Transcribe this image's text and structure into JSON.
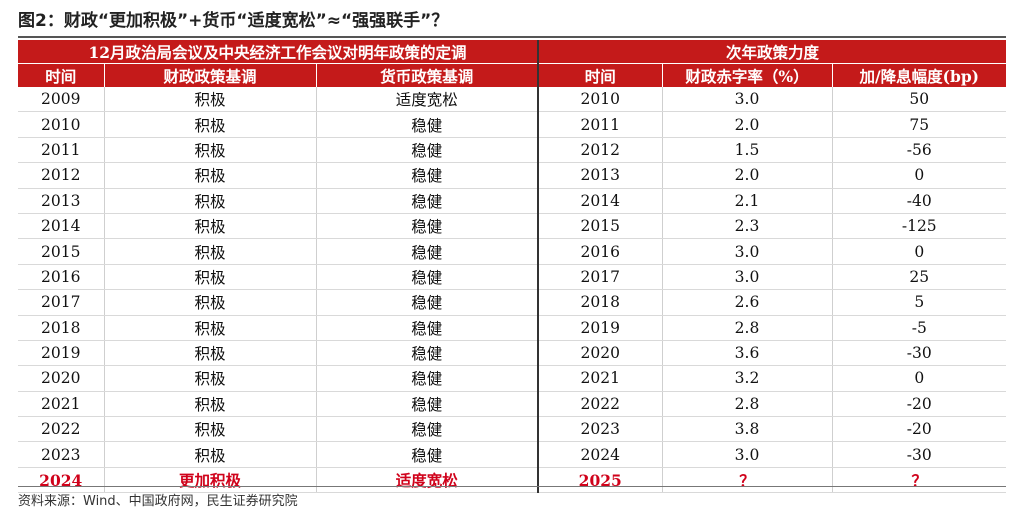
{
  "figure": {
    "title": "图2：财政“更加积极”+货币“适度宽松”≈“强强联手”？",
    "source": "资料来源：Wind、中国政府网，民生证券研究院"
  },
  "table": {
    "left_banner": "12月政治局会议及中央经济工作会议对明年政策的定调",
    "right_banner": "次年政策力度",
    "headers": [
      "时间",
      "财政政策基调",
      "货币政策基调",
      "时间",
      "财政赤字率（%）",
      "加/降息幅度(bp)"
    ],
    "rows": [
      {
        "year": "2009",
        "fiscal": "积极",
        "monetary": "适度宽松",
        "next_year": "2010",
        "deficit": "3.0",
        "rate": "50",
        "bold": [
          "monetary"
        ]
      },
      {
        "year": "2010",
        "fiscal": "积极",
        "monetary": "稳健",
        "next_year": "2011",
        "deficit": "2.0",
        "rate": "75",
        "bold": []
      },
      {
        "year": "2011",
        "fiscal": "积极",
        "monetary": "稳健",
        "next_year": "2012",
        "deficit": "1.5",
        "rate": "-56",
        "bold": []
      },
      {
        "year": "2012",
        "fiscal": "积极",
        "monetary": "稳健",
        "next_year": "2013",
        "deficit": "2.0",
        "rate": "0",
        "bold": []
      },
      {
        "year": "2013",
        "fiscal": "积极",
        "monetary": "稳健",
        "next_year": "2014",
        "deficit": "2.1",
        "rate": "-40",
        "bold": []
      },
      {
        "year": "2014",
        "fiscal": "积极",
        "monetary": "稳健",
        "next_year": "2015",
        "deficit": "2.3",
        "rate": "-125",
        "bold": []
      },
      {
        "year": "2015",
        "fiscal": "积极",
        "monetary": "稳健",
        "next_year": "2016",
        "deficit": "3.0",
        "rate": "0",
        "bold": []
      },
      {
        "year": "2016",
        "fiscal": "积极",
        "monetary": "稳健",
        "next_year": "2017",
        "deficit": "3.0",
        "rate": "25",
        "bold": []
      },
      {
        "year": "2017",
        "fiscal": "积极",
        "monetary": "稳健",
        "next_year": "2018",
        "deficit": "2.6",
        "rate": "5",
        "bold": []
      },
      {
        "year": "2018",
        "fiscal": "积极",
        "monetary": "稳健",
        "next_year": "2019",
        "deficit": "2.8",
        "rate": "-5",
        "bold": []
      },
      {
        "year": "2019",
        "fiscal": "积极",
        "monetary": "稳健",
        "next_year": "2020",
        "deficit": "3.6",
        "rate": "-30",
        "bold": [
          "next_year",
          "deficit"
        ]
      },
      {
        "year": "2020",
        "fiscal": "积极",
        "monetary": "稳健",
        "next_year": "2021",
        "deficit": "3.2",
        "rate": "0",
        "bold": []
      },
      {
        "year": "2021",
        "fiscal": "积极",
        "monetary": "稳健",
        "next_year": "2022",
        "deficit": "2.8",
        "rate": "-20",
        "bold": []
      },
      {
        "year": "2022",
        "fiscal": "积极",
        "monetary": "稳健",
        "next_year": "2023",
        "deficit": "3.8",
        "rate": "-20",
        "bold": [
          "next_year",
          "deficit"
        ]
      },
      {
        "year": "2023",
        "fiscal": "积极",
        "monetary": "稳健",
        "next_year": "2024",
        "deficit": "3.0",
        "rate": "-30",
        "bold": []
      }
    ],
    "final_row": {
      "year": "2024",
      "fiscal": "更加积极",
      "monetary": "适度宽松",
      "next_year": "2025",
      "deficit": "？",
      "rate": "？"
    }
  },
  "colors": {
    "header_red": "#c41a1a",
    "highlight_red": "#d0021b"
  }
}
